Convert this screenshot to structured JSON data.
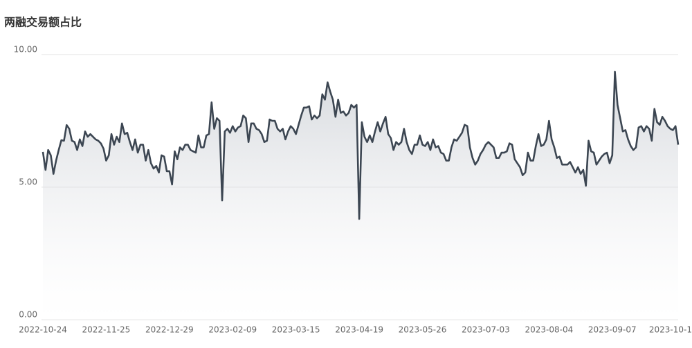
{
  "chart_data": {
    "type": "line",
    "title": "两融交易额占比",
    "categories": [
      "2022-10-24",
      null,
      null,
      null,
      null,
      null,
      null,
      null,
      null,
      null,
      null,
      null,
      null,
      null,
      null,
      null,
      null,
      null,
      null,
      null,
      null,
      null,
      null,
      null,
      "2022-11-25",
      null,
      null,
      null,
      null,
      null,
      null,
      null,
      null,
      null,
      null,
      null,
      null,
      null,
      null,
      null,
      null,
      null,
      null,
      null,
      null,
      null,
      null,
      null,
      "2022-12-29",
      null,
      null,
      null,
      null,
      null,
      null,
      null,
      null,
      null,
      null,
      null,
      null,
      null,
      null,
      null,
      null,
      null,
      null,
      null,
      null,
      null,
      null,
      null,
      "2023-02-09",
      null,
      null,
      null,
      null,
      null,
      null,
      null,
      null,
      null,
      null,
      null,
      null,
      null,
      null,
      null,
      null,
      null,
      null,
      null,
      null,
      null,
      null,
      null,
      "2023-03-15",
      null,
      null,
      null,
      null,
      null,
      null,
      null,
      null,
      null,
      null,
      null,
      null,
      null,
      null,
      null,
      null,
      null,
      null,
      null,
      null,
      null,
      null,
      null,
      "2023-04-19",
      null,
      null,
      null,
      null,
      null,
      null,
      null,
      null,
      null,
      null,
      null,
      null,
      null,
      null,
      null,
      null,
      null,
      null,
      null,
      null,
      null,
      null,
      null,
      "2023-05-26",
      null,
      null,
      null,
      null,
      null,
      null,
      null,
      null,
      null,
      null,
      null,
      null,
      null,
      null,
      null,
      null,
      null,
      null,
      null,
      null,
      null,
      null,
      null,
      "2023-07-03",
      null,
      null,
      null,
      null,
      null,
      null,
      null,
      null,
      null,
      null,
      null,
      null,
      null,
      null,
      null,
      null,
      null,
      null,
      null,
      null,
      null,
      null,
      null,
      "2023-08-04",
      null,
      null,
      null,
      null,
      null,
      null,
      null,
      null,
      null,
      null,
      null,
      null,
      null,
      null,
      null,
      null,
      null,
      null,
      null,
      null,
      null,
      null,
      null,
      "2023-09-07",
      null,
      null,
      null,
      null,
      null,
      null,
      null,
      null,
      null,
      null,
      null,
      null,
      null,
      null,
      null,
      null,
      null,
      null,
      null,
      null,
      null,
      null,
      null,
      "2023-10-1",
      null
    ],
    "values": [
      6.33,
      5.65,
      6.4,
      6.2,
      5.5,
      6.0,
      6.4,
      6.77,
      6.75,
      7.34,
      7.2,
      6.75,
      6.7,
      6.4,
      6.8,
      6.55,
      7.1,
      6.9,
      7.0,
      6.9,
      6.8,
      6.75,
      6.65,
      6.45,
      6.0,
      6.2,
      7.0,
      6.6,
      6.9,
      6.7,
      7.4,
      7.0,
      7.05,
      6.7,
      6.4,
      6.8,
      6.3,
      6.6,
      6.6,
      6.0,
      6.4,
      5.9,
      5.7,
      5.8,
      5.55,
      6.2,
      6.15,
      5.6,
      5.6,
      5.1,
      6.35,
      6.05,
      6.5,
      6.4,
      6.6,
      6.6,
      6.4,
      6.35,
      6.3,
      6.95,
      6.5,
      6.5,
      6.95,
      7.0,
      8.2,
      7.2,
      7.6,
      7.5,
      4.5,
      7.1,
      7.2,
      7.05,
      7.3,
      7.1,
      7.25,
      7.3,
      7.7,
      7.6,
      6.7,
      7.4,
      7.4,
      7.2,
      7.15,
      7.0,
      6.7,
      6.75,
      7.55,
      7.5,
      7.5,
      7.2,
      7.1,
      7.2,
      6.8,
      7.1,
      7.3,
      7.2,
      7.0,
      7.35,
      7.7,
      8.0,
      8.0,
      8.05,
      7.55,
      7.7,
      7.6,
      7.7,
      8.5,
      8.3,
      8.95,
      8.6,
      8.3,
      7.65,
      8.3,
      7.8,
      7.85,
      7.7,
      7.8,
      8.1,
      8.0,
      8.1,
      3.8,
      7.45,
      6.9,
      6.7,
      6.95,
      6.7,
      7.1,
      7.45,
      7.1,
      7.4,
      7.65,
      7.0,
      6.85,
      6.4,
      6.7,
      6.6,
      6.7,
      7.2,
      6.7,
      6.4,
      6.25,
      6.6,
      6.6,
      6.95,
      6.6,
      6.55,
      6.7,
      6.4,
      6.8,
      6.5,
      6.55,
      6.3,
      6.25,
      6.0,
      6.0,
      6.5,
      6.8,
      6.75,
      6.9,
      7.05,
      7.35,
      7.3,
      6.5,
      6.1,
      5.85,
      6.0,
      6.25,
      6.4,
      6.6,
      6.7,
      6.6,
      6.5,
      6.1,
      6.1,
      6.3,
      6.3,
      6.35,
      6.65,
      6.6,
      6.05,
      5.9,
      5.75,
      5.45,
      5.55,
      6.3,
      6.0,
      6.0,
      6.55,
      7.0,
      6.55,
      6.6,
      6.8,
      7.5,
      6.8,
      6.5,
      6.1,
      6.15,
      5.85,
      5.85,
      5.85,
      5.95,
      5.75,
      5.55,
      5.75,
      5.5,
      5.65,
      5.05,
      6.75,
      6.35,
      6.3,
      5.85,
      6.0,
      6.15,
      6.25,
      6.3,
      5.9,
      6.2,
      9.35,
      8.1,
      7.6,
      7.1,
      7.15,
      6.8,
      6.55,
      6.4,
      6.5,
      7.25,
      7.3,
      7.1,
      7.3,
      7.2,
      6.75,
      7.95,
      7.45,
      7.35,
      7.65,
      7.5,
      7.3,
      7.2,
      7.15,
      7.3,
      6.6
    ],
    "color": "#3c4652",
    "ylim": [
      0,
      10
    ],
    "yticks": [
      {
        "value": 0,
        "label": "0.00"
      },
      {
        "value": 5,
        "label": "5.00"
      },
      {
        "value": 10,
        "label": "10.00"
      }
    ],
    "grid": true
  }
}
